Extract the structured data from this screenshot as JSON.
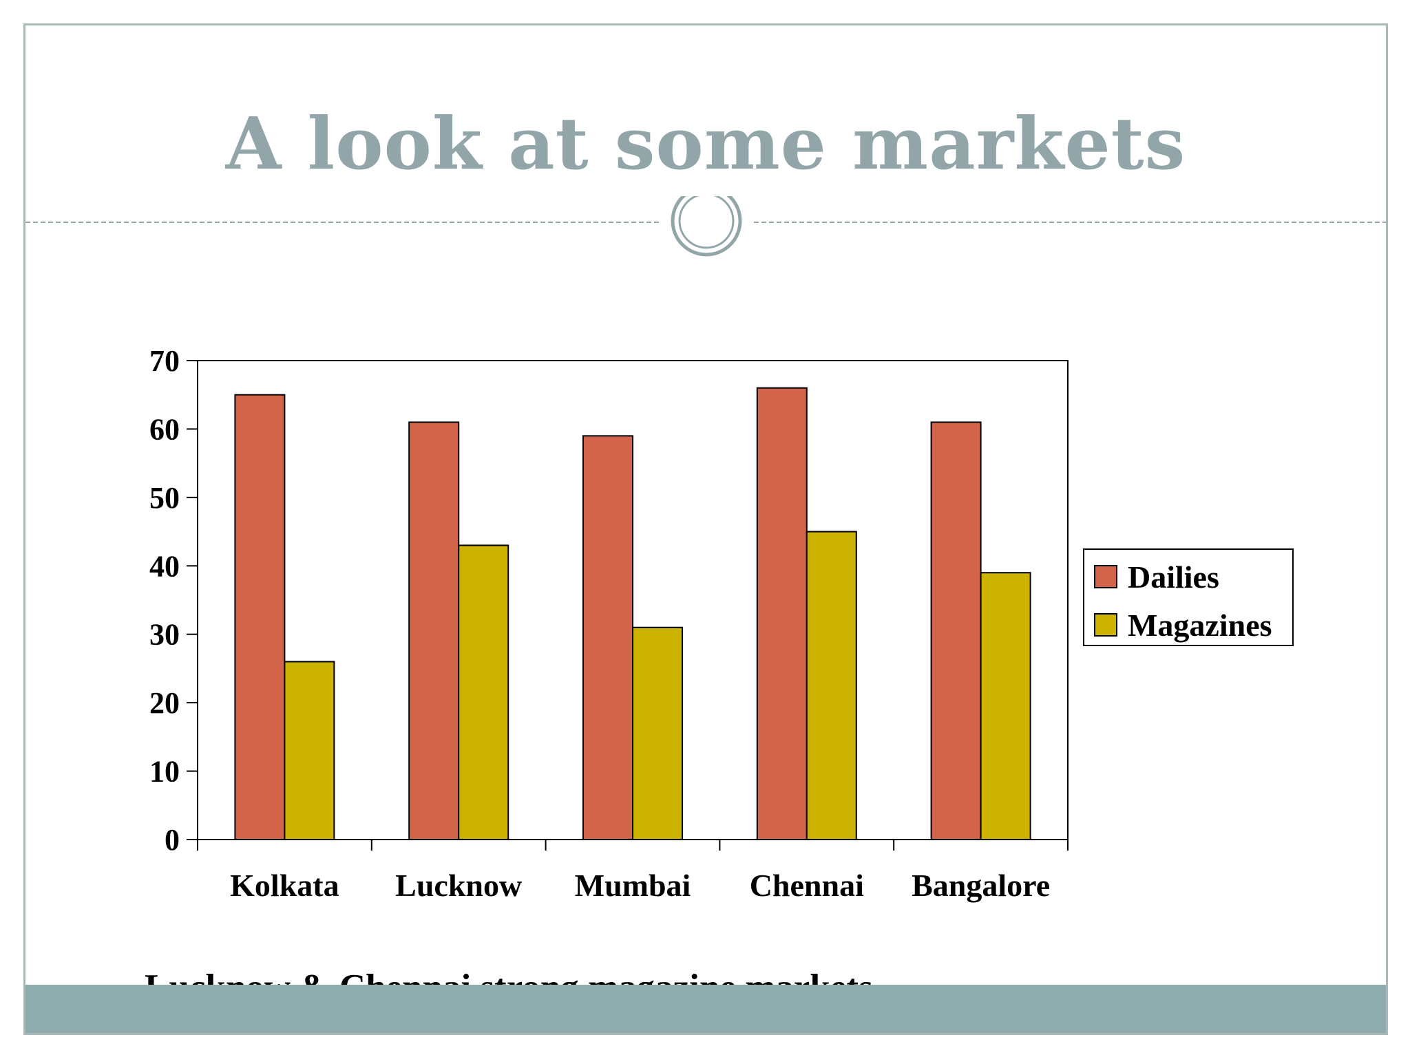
{
  "slide": {
    "title": "A look at some markets",
    "footnote": "Lucknow & Chennai strong magazine markets",
    "colors": {
      "title": "#92a6aa",
      "divider": "#92a6aa",
      "footer_bar": "#8eabad",
      "border": "#a9b9b7"
    }
  },
  "chart_data": {
    "type": "bar",
    "categories": [
      "Kolkata",
      "Lucknow",
      "Mumbai",
      "Chennai",
      "Bangalore"
    ],
    "series": [
      {
        "name": "Dailies",
        "values": [
          65,
          61,
          59,
          66,
          61
        ],
        "color": "#d2644a"
      },
      {
        "name": "Magazines",
        "values": [
          26,
          43,
          31,
          45,
          39
        ],
        "color": "#cbb300"
      }
    ],
    "ylim": [
      0,
      70
    ],
    "yticks": [
      "0",
      "10",
      "20",
      "30",
      "40",
      "50",
      "60",
      "70"
    ],
    "title": "",
    "xlabel": "",
    "ylabel": "",
    "grid": false,
    "legend_position": "right"
  }
}
